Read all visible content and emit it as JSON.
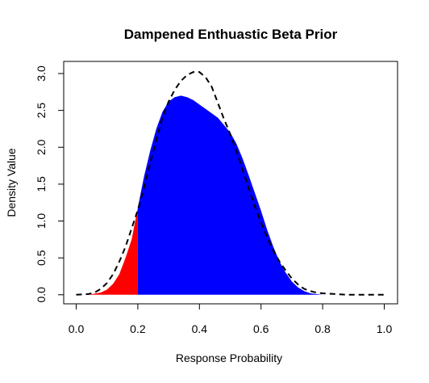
{
  "chart_data": {
    "type": "area",
    "title": "Dampened Enthuastic Beta Prior",
    "xlabel": "Response Probability",
    "ylabel": "Density Value",
    "xlim": [
      0,
      1
    ],
    "ylim": [
      0,
      3.05
    ],
    "x_ticks": [
      "0.0",
      "0.2",
      "0.4",
      "0.6",
      "0.8",
      "1.0"
    ],
    "y_ticks": [
      "0.0",
      "0.5",
      "1.0",
      "1.5",
      "2.0",
      "2.5",
      "3.0"
    ],
    "grid": false,
    "legend": "none",
    "series": [
      {
        "style": "filled",
        "x": [
          0.0,
          0.04,
          0.08,
          0.1,
          0.12,
          0.14,
          0.16,
          0.18,
          0.2,
          0.22,
          0.24,
          0.26,
          0.28,
          0.3,
          0.32,
          0.34,
          0.36,
          0.38,
          0.4,
          0.42,
          0.44,
          0.46,
          0.48,
          0.5,
          0.52,
          0.54,
          0.56,
          0.58,
          0.6,
          0.62,
          0.64,
          0.66,
          0.68,
          0.7,
          0.72,
          0.74,
          0.76,
          0.78,
          0.8,
          0.84,
          0.88,
          0.92,
          0.96,
          1.0
        ],
        "y": [
          0.0,
          0.0,
          0.03,
          0.07,
          0.15,
          0.28,
          0.5,
          0.75,
          1.18,
          1.6,
          1.95,
          2.25,
          2.48,
          2.62,
          2.68,
          2.7,
          2.68,
          2.64,
          2.58,
          2.52,
          2.46,
          2.4,
          2.3,
          2.2,
          2.05,
          1.85,
          1.62,
          1.38,
          1.14,
          0.88,
          0.65,
          0.45,
          0.3,
          0.18,
          0.1,
          0.05,
          0.02,
          0.01,
          0.0,
          0.0,
          0.0,
          0.0,
          0.0,
          0.0
        ],
        "fill_below_threshold": "#ff0000",
        "fill_above_threshold": "#0000ff",
        "threshold_x": 0.2
      },
      {
        "style": "dashed",
        "x": [
          0.0,
          0.04,
          0.06,
          0.08,
          0.1,
          0.12,
          0.14,
          0.16,
          0.18,
          0.2,
          0.22,
          0.24,
          0.26,
          0.28,
          0.3,
          0.32,
          0.34,
          0.36,
          0.38,
          0.4,
          0.42,
          0.44,
          0.46,
          0.48,
          0.5,
          0.52,
          0.54,
          0.56,
          0.58,
          0.6,
          0.62,
          0.64,
          0.66,
          0.68,
          0.7,
          0.72,
          0.74,
          0.76,
          0.78,
          0.8,
          0.84,
          0.88,
          0.92,
          0.96,
          1.0
        ],
        "y": [
          0.0,
          0.01,
          0.03,
          0.08,
          0.16,
          0.28,
          0.45,
          0.65,
          0.9,
          1.15,
          1.45,
          1.78,
          2.1,
          2.4,
          2.62,
          2.78,
          2.9,
          2.98,
          3.02,
          3.02,
          2.95,
          2.82,
          2.6,
          2.38,
          2.18,
          1.95,
          1.7,
          1.45,
          1.2,
          0.98,
          0.78,
          0.6,
          0.45,
          0.33,
          0.22,
          0.14,
          0.08,
          0.05,
          0.03,
          0.02,
          0.01,
          0.0,
          0.0,
          0.0,
          0.0
        ],
        "color": "#000000"
      }
    ]
  }
}
